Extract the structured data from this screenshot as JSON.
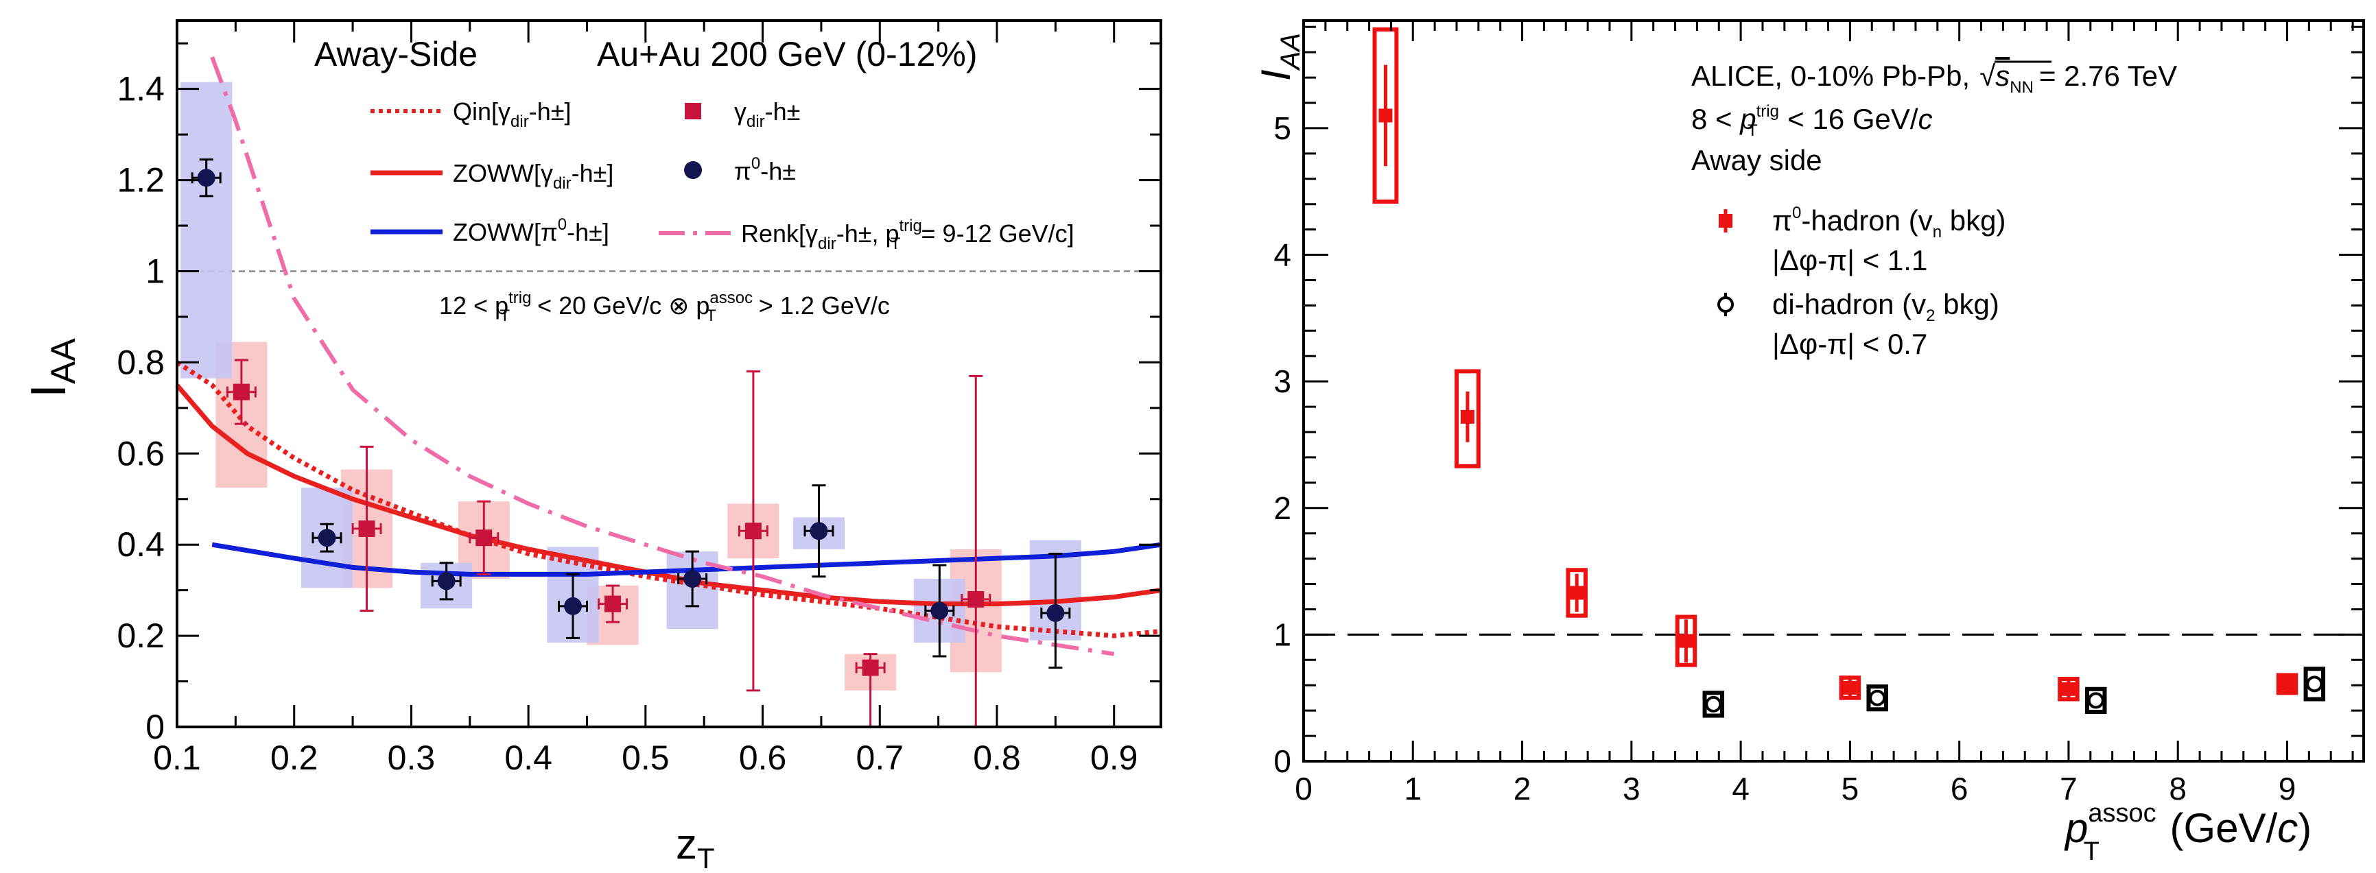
{
  "colors": {
    "gamma_marker": "#c8143c",
    "gamma_box": "#f8c3c3",
    "pi0_marker": "#141450",
    "pi0_box": "#c5c5f3",
    "qin": "#e82020",
    "zoww_gamma": "#e82020",
    "zoww_pi0": "#1020d8",
    "renk": "#ef6ca8",
    "alice_red": "#ee1111",
    "alice_black": "#000000"
  },
  "chart_data": [
    {
      "type": "scatter",
      "panel": "left",
      "title": "Away-Side",
      "system": "Au+Au 200 GeV (0-12%)",
      "kinematics": "12 < p_T^trig < 20 GeV/c ⊗ p_T^assoc > 1.2 GeV/c",
      "xlabel": "z_T",
      "ylabel": "I_AA",
      "xlim": [
        0.1,
        0.94
      ],
      "ylim": [
        0,
        1.55
      ],
      "xticks": [
        0.1,
        0.2,
        0.3,
        0.4,
        0.5,
        0.6,
        0.7,
        0.8,
        0.9
      ],
      "yticks": [
        0,
        0.2,
        0.4,
        0.6,
        0.8,
        1,
        1.2,
        1.4
      ],
      "reference_line": 1,
      "x_tick_labels": [
        "0.1",
        "0.2",
        "0.3",
        "0.4",
        "0.5",
        "0.6",
        "0.7",
        "0.8",
        "0.9"
      ],
      "y_tick_labels": [
        "0",
        "0.2",
        "0.4",
        "0.6",
        "0.8",
        "1",
        "1.2",
        "1.4"
      ],
      "series": [
        {
          "name": "γ_dir-h±",
          "kind": "points",
          "x": [
            0.155,
            0.262,
            0.362,
            0.472,
            0.592,
            0.692,
            0.782
          ],
          "y": [
            0.735,
            0.435,
            0.415,
            0.27,
            0.43,
            0.13,
            0.28
          ],
          "y_err_low": [
            0.07,
            0.18,
            0.08,
            0.04,
            0.35,
            0.13,
            0.28
          ],
          "y_err_high": [
            0.07,
            0.18,
            0.08,
            0.04,
            0.35,
            0.03,
            0.49
          ],
          "x_err": [
            0.012,
            0.012,
            0.012,
            0.012,
            0.012,
            0.012,
            0.012
          ],
          "syst_low": [
            0.21,
            0.13,
            0.09,
            0.09,
            0.06,
            0.05,
            0.16
          ],
          "syst_high": [
            0.11,
            0.13,
            0.08,
            0.04,
            0.06,
            0.03,
            0.11
          ],
          "syst_halfwidth": [
            0.022,
            0.022,
            0.022,
            0.022,
            0.022,
            0.022,
            0.022
          ]
        },
        {
          "name": "π0-h±",
          "kind": "points",
          "x": [
            0.125,
            0.228,
            0.33,
            0.438,
            0.54,
            0.648,
            0.751,
            0.85
          ],
          "y": [
            1.205,
            0.415,
            0.32,
            0.265,
            0.325,
            0.43,
            0.255,
            0.25
          ],
          "y_err_low": [
            0.04,
            0.03,
            0.04,
            0.07,
            0.06,
            0.1,
            0.1,
            0.12
          ],
          "y_err_high": [
            0.04,
            0.03,
            0.04,
            0.07,
            0.06,
            0.1,
            0.1,
            0.13
          ],
          "x_err": [
            0.012,
            0.012,
            0.012,
            0.012,
            0.012,
            0.012,
            0.012,
            0.012
          ],
          "syst_low": [
            0.44,
            0.11,
            0.06,
            0.08,
            0.11,
            0.04,
            0.07,
            0.06
          ],
          "syst_high": [
            0.21,
            0.11,
            0.04,
            0.13,
            0.06,
            0.03,
            0.07,
            0.16
          ],
          "syst_halfwidth": [
            0.022,
            0.022,
            0.022,
            0.022,
            0.022,
            0.022,
            0.022,
            0.022
          ]
        },
        {
          "name": "Qin[γ_dir-h±]",
          "kind": "curve",
          "style": "dotted",
          "x": [
            0.1,
            0.13,
            0.16,
            0.2,
            0.25,
            0.3,
            0.35,
            0.4,
            0.5,
            0.6,
            0.7,
            0.8,
            0.9,
            0.94
          ],
          "y": [
            0.8,
            0.75,
            0.66,
            0.59,
            0.52,
            0.47,
            0.42,
            0.38,
            0.33,
            0.29,
            0.26,
            0.22,
            0.2,
            0.21
          ]
        },
        {
          "name": "ZOWW[γ_dir-h±]",
          "kind": "curve",
          "style": "solid",
          "x": [
            0.1,
            0.13,
            0.16,
            0.2,
            0.25,
            0.3,
            0.35,
            0.4,
            0.45,
            0.5,
            0.55,
            0.6,
            0.65,
            0.7,
            0.75,
            0.8,
            0.85,
            0.9,
            0.94
          ],
          "y": [
            0.75,
            0.66,
            0.6,
            0.55,
            0.5,
            0.46,
            0.42,
            0.39,
            0.365,
            0.34,
            0.315,
            0.3,
            0.285,
            0.275,
            0.27,
            0.27,
            0.275,
            0.285,
            0.3
          ]
        },
        {
          "name": "ZOWW[π0-h±]",
          "kind": "curve",
          "style": "solid",
          "x": [
            0.13,
            0.2,
            0.25,
            0.3,
            0.35,
            0.4,
            0.45,
            0.5,
            0.55,
            0.6,
            0.65,
            0.7,
            0.75,
            0.8,
            0.85,
            0.9,
            0.94
          ],
          "y": [
            0.4,
            0.37,
            0.35,
            0.34,
            0.335,
            0.335,
            0.335,
            0.34,
            0.345,
            0.35,
            0.355,
            0.36,
            0.365,
            0.37,
            0.375,
            0.385,
            0.4
          ]
        },
        {
          "name": "Renk[γ_dir-h±, p_T^trig= 9-12 GeV/c]",
          "kind": "curve",
          "style": "dashdot",
          "x": [
            0.13,
            0.15,
            0.2,
            0.25,
            0.3,
            0.35,
            0.4,
            0.45,
            0.5,
            0.55,
            0.6,
            0.65,
            0.7,
            0.75,
            0.8,
            0.85,
            0.9
          ],
          "y": [
            1.47,
            1.33,
            0.94,
            0.74,
            0.63,
            0.55,
            0.49,
            0.44,
            0.4,
            0.36,
            0.33,
            0.29,
            0.26,
            0.23,
            0.2,
            0.18,
            0.16
          ]
        }
      ],
      "legend": {
        "qin": "Qin[γ",
        "zoww_g": "ZOWW[γ",
        "zoww_p": "ZOWW[π",
        "renk": "Renk[γ",
        "gamma_pts": "γ",
        "pi0_pts": "π"
      }
    },
    {
      "type": "scatter",
      "panel": "right",
      "experiment": "ALICE, 0-10% Pb-Pb,",
      "energy": "= 2.76 TeV",
      "trigger": "8 < p_T^trig < 16 GeV/c",
      "side": "Away side",
      "xlabel": "p_T^assoc (GeV/c)",
      "ylabel": "I_AA",
      "xlim": [
        0,
        9.7
      ],
      "ylim": [
        0,
        5.85
      ],
      "xticks": [
        0,
        1,
        2,
        3,
        4,
        5,
        6,
        7,
        8,
        9
      ],
      "yticks": [
        0,
        1,
        2,
        3,
        4,
        5
      ],
      "reference_line": 1,
      "x_tick_labels": [
        "0",
        "1",
        "2",
        "3",
        "4",
        "5",
        "6",
        "7",
        "8",
        "9"
      ],
      "y_tick_labels": [
        "0",
        "1",
        "2",
        "3",
        "4",
        "5"
      ],
      "series": [
        {
          "name": "π0-hadron (v_n bkg) |Δφ-π| < 1.1",
          "kind": "points",
          "marker": "filled-square",
          "x": [
            0.75,
            1.5,
            2.5,
            3.5,
            5.0,
            7.0,
            9.0
          ],
          "y": [
            5.1,
            2.72,
            1.33,
            0.95,
            0.58,
            0.57,
            0.61
          ],
          "y_err_low": [
            0.4,
            0.2,
            0.15,
            0.17,
            0.07,
            0.07,
            0.06
          ],
          "y_err_high": [
            0.4,
            0.2,
            0.15,
            0.17,
            0.07,
            0.07,
            0.06
          ],
          "syst_low": [
            0.68,
            0.39,
            0.18,
            0.19,
            0.08,
            0.08,
            0.07
          ],
          "syst_high": [
            0.68,
            0.36,
            0.18,
            0.19,
            0.08,
            0.08,
            0.07
          ],
          "syst_halfwidth": [
            0.1,
            0.1,
            0.08,
            0.08,
            0.08,
            0.08,
            0.08
          ]
        },
        {
          "name": "di-hadron (v_2 bkg) |Δφ-π| < 0.7",
          "kind": "points",
          "marker": "open-circle",
          "x": [
            3.75,
            5.25,
            7.25,
            9.25
          ],
          "y": [
            0.45,
            0.5,
            0.48,
            0.61
          ],
          "y_err_low": [
            0.05,
            0.05,
            0.05,
            0.06
          ],
          "y_err_high": [
            0.05,
            0.05,
            0.05,
            0.06
          ],
          "syst_low": [
            0.09,
            0.09,
            0.09,
            0.12
          ],
          "syst_high": [
            0.09,
            0.09,
            0.09,
            0.12
          ],
          "syst_halfwidth": [
            0.08,
            0.08,
            0.08,
            0.08
          ]
        }
      ],
      "legend": {
        "red": "π",
        "red_sub": "-hadron (v",
        "red_cut": "|Δφ-π| < 1.1",
        "black": "di-hadron (v",
        "black_cut": "|Δφ-π| < 0.7"
      }
    }
  ]
}
